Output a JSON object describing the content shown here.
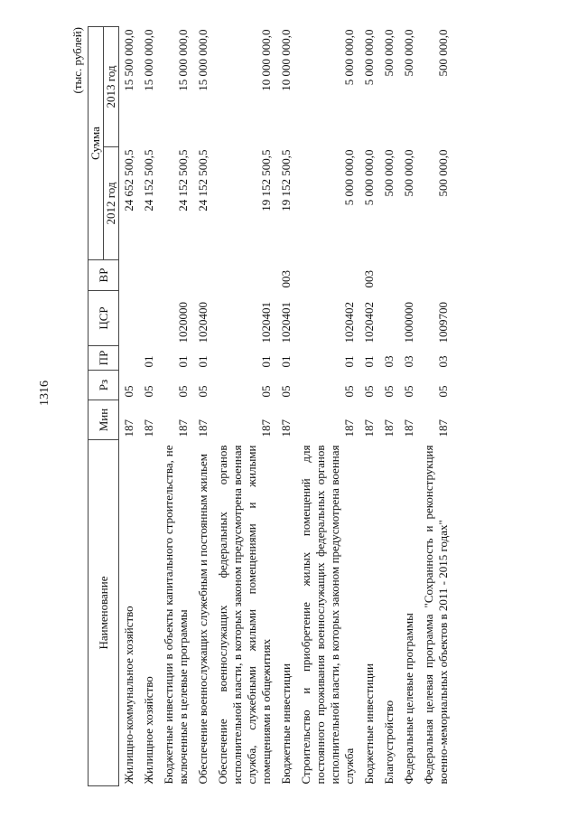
{
  "page_number": "1316",
  "units": "(тыс. рублей)",
  "headers": {
    "name": "Наименование",
    "min": "Мин",
    "rz": "Рз",
    "pr": "ПР",
    "csr": "ЦСР",
    "vr": "ВР",
    "sum": "Сумма",
    "y2012": "2012 год",
    "y2013": "2013 год"
  },
  "rows": [
    {
      "name": "Жилищно-коммунальное хозяйство",
      "min": "187",
      "rz": "05",
      "pr": "",
      "csr": "",
      "vr": "",
      "y2012": "24 652 500,5",
      "y2013": "15 500 000,0"
    },
    {
      "name": "Жилищное хозяйство",
      "min": "187",
      "rz": "05",
      "pr": "01",
      "csr": "",
      "vr": "",
      "y2012": "24 152 500,5",
      "y2013": "15 000 000,0"
    },
    {
      "name": "Бюджетные инвестиции в объекты капитального строительства, не включенные в целевые программы",
      "min": "187",
      "rz": "05",
      "pr": "01",
      "csr": "1020000",
      "vr": "",
      "y2012": "24 152 500,5",
      "y2013": "15 000 000,0"
    },
    {
      "name": "Обеспечение военнослужащих служебным и постоянным жильем",
      "min": "187",
      "rz": "05",
      "pr": "01",
      "csr": "1020400",
      "vr": "",
      "y2012": "24 152 500,5",
      "y2013": "15 000 000,0"
    },
    {
      "name": "Обеспечение военнослужащих федеральных органов исполнительной власти, в которых законом предусмотрена военная служба, служебными жилыми помещениями и жилыми помещениями в общежитиях",
      "min": "187",
      "rz": "05",
      "pr": "01",
      "csr": "1020401",
      "vr": "",
      "y2012": "19 152 500,5",
      "y2013": "10 000 000,0"
    },
    {
      "name": "Бюджетные инвестиции",
      "min": "187",
      "rz": "05",
      "pr": "01",
      "csr": "1020401",
      "vr": "003",
      "y2012": "19 152 500,5",
      "y2013": "10 000 000,0"
    },
    {
      "name": "Строительство и приобретение жилых помещений для постоянного проживания военнослужащих федеральных органов исполнительной власти, в которых законом предусмотрена военная служба",
      "min": "187",
      "rz": "05",
      "pr": "01",
      "csr": "1020402",
      "vr": "",
      "y2012": "5 000 000,0",
      "y2013": "5 000 000,0"
    },
    {
      "name": "Бюджетные инвестиции",
      "min": "187",
      "rz": "05",
      "pr": "01",
      "csr": "1020402",
      "vr": "003",
      "y2012": "5 000 000,0",
      "y2013": "5 000 000,0"
    },
    {
      "name": "Благоустройство",
      "min": "187",
      "rz": "05",
      "pr": "03",
      "csr": "",
      "vr": "",
      "y2012": "500 000,0",
      "y2013": "500 000,0"
    },
    {
      "name": "Федеральные целевые программы",
      "min": "187",
      "rz": "05",
      "pr": "03",
      "csr": "1000000",
      "vr": "",
      "y2012": "500 000,0",
      "y2013": "500 000,0"
    },
    {
      "name": "Федеральная целевая программа \"Сохранность и реконструкция военно-мемориальных объектов в 2011 - 2015 годах\"",
      "min": "187",
      "rz": "05",
      "pr": "03",
      "csr": "1009700",
      "vr": "",
      "y2012": "500 000,0",
      "y2013": "500 000,0"
    }
  ]
}
